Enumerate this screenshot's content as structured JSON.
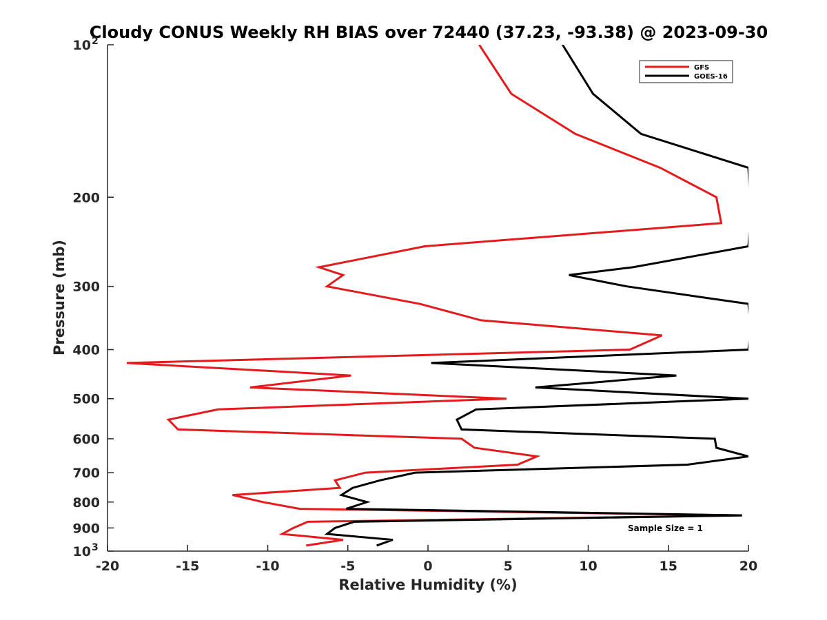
{
  "chart_data": {
    "type": "line",
    "title": "Cloudy CONUS Weekly RH BIAS over 72440 (37.23, -93.38) @ 2023-09-30",
    "xlabel": "Relative Humidity (%)",
    "ylabel": "Pressure (mb)",
    "xlim": [
      -20,
      20
    ],
    "ylim": [
      1000,
      100
    ],
    "y_scale": "log",
    "y_reversed": true,
    "x_ticks": [
      "-20",
      "-15",
      "-10",
      "-5",
      "0",
      "5",
      "10",
      "15",
      "20"
    ],
    "y_ticks": [
      {
        "value": 100,
        "label": "10",
        "exp": "2"
      },
      {
        "value": 200,
        "label": "200"
      },
      {
        "value": 300,
        "label": "300"
      },
      {
        "value": 400,
        "label": "400"
      },
      {
        "value": 500,
        "label": "500"
      },
      {
        "value": 600,
        "label": "600"
      },
      {
        "value": 700,
        "label": "700"
      },
      {
        "value": 800,
        "label": "800"
      },
      {
        "value": 900,
        "label": "900"
      },
      {
        "value": 1000,
        "label": "10",
        "exp": "3"
      }
    ],
    "grid": false,
    "legend_position": "top-right",
    "series": [
      {
        "name": "GFS",
        "color": "#e41a1c",
        "points": [
          [
            3.2,
            100
          ],
          [
            5.2,
            125
          ],
          [
            9.2,
            150
          ],
          [
            14.5,
            175
          ],
          [
            18.0,
            200
          ],
          [
            18.3,
            225
          ],
          [
            -0.2,
            250
          ],
          [
            -6.8,
            275
          ],
          [
            -5.3,
            285
          ],
          [
            -6.3,
            300
          ],
          [
            -0.5,
            325
          ],
          [
            3.3,
            350
          ],
          [
            14.6,
            375
          ],
          [
            12.6,
            400
          ],
          [
            -18.8,
            425
          ],
          [
            -4.8,
            450
          ],
          [
            -11.1,
            475
          ],
          [
            4.9,
            500
          ],
          [
            -13.1,
            525
          ],
          [
            -16.2,
            550
          ],
          [
            -15.6,
            575
          ],
          [
            2.1,
            600
          ],
          [
            2.9,
            625
          ],
          [
            6.8,
            650
          ],
          [
            5.6,
            675
          ],
          [
            -3.9,
            700
          ],
          [
            -5.8,
            725
          ],
          [
            -5.5,
            750
          ],
          [
            -12.2,
            775
          ],
          [
            -10.3,
            800
          ],
          [
            -8.0,
            825
          ],
          [
            19.6,
            850
          ],
          [
            -7.5,
            875
          ],
          [
            -8.4,
            900
          ],
          [
            -9.1,
            925
          ],
          [
            -5.3,
            950
          ],
          [
            -7.6,
            975
          ]
        ]
      },
      {
        "name": "GOES-16",
        "color": "#000000",
        "points": [
          [
            8.4,
            100
          ],
          [
            10.3,
            125
          ],
          [
            13.3,
            150
          ],
          [
            20.0,
            175
          ],
          [
            20.1,
            200
          ],
          [
            20.1,
            225
          ],
          [
            20.0,
            250
          ],
          [
            12.8,
            275
          ],
          [
            8.8,
            285
          ],
          [
            12.4,
            300
          ],
          [
            20.0,
            325
          ],
          [
            20.1,
            350
          ],
          [
            20.1,
            375
          ],
          [
            20.0,
            400
          ],
          [
            0.2,
            425
          ],
          [
            15.5,
            450
          ],
          [
            6.7,
            475
          ],
          [
            20.0,
            500
          ],
          [
            3.0,
            525
          ],
          [
            1.8,
            550
          ],
          [
            2.1,
            575
          ],
          [
            17.9,
            600
          ],
          [
            18.0,
            625
          ],
          [
            20.0,
            650
          ],
          [
            16.2,
            675
          ],
          [
            -0.8,
            700
          ],
          [
            -3.0,
            725
          ],
          [
            -4.7,
            750
          ],
          [
            -5.4,
            775
          ],
          [
            -3.8,
            800
          ],
          [
            -5.1,
            825
          ],
          [
            19.6,
            850
          ],
          [
            -4.6,
            875
          ],
          [
            -5.8,
            900
          ],
          [
            -6.3,
            925
          ],
          [
            -2.2,
            950
          ],
          [
            -3.2,
            975
          ]
        ]
      }
    ],
    "annotations": [
      "Sample Size = 1"
    ]
  }
}
